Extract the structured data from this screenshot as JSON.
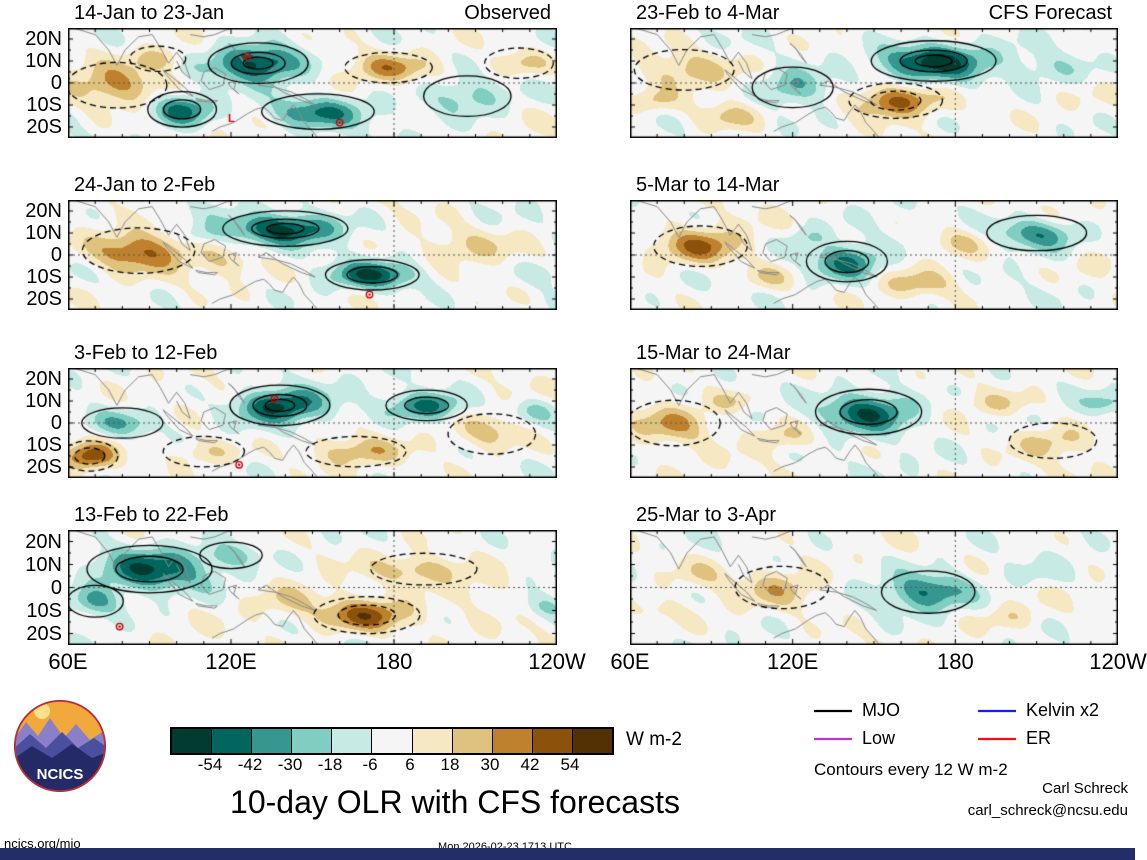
{
  "title": "10-day OLR with CFS forecasts",
  "footer": {
    "site": "ncics.org/mjo",
    "timestamp": "Mon 2026-02-23 1713 UTC"
  },
  "credits": {
    "name": "Carl Schreck",
    "email": "carl_schreck@ncsu.edu"
  },
  "logo": {
    "text": "NCICS"
  },
  "legend": {
    "note": "Contours every 12 W m-2",
    "items": [
      {
        "label": "MJO",
        "color": "#000000"
      },
      {
        "label": "Kelvin x2",
        "color": "#1a1aff"
      },
      {
        "label": "Low",
        "color": "#bb33dd"
      },
      {
        "label": "ER",
        "color": "#ee1111"
      }
    ]
  },
  "colorbar": {
    "units": "W m-2",
    "tick_labels": [
      "-54",
      "-42",
      "-30",
      "-18",
      "-6",
      "6",
      "18",
      "30",
      "42",
      "54"
    ],
    "colors": [
      "#003c30",
      "#01665e",
      "#35978f",
      "#80cdc1",
      "#c7eae5",
      "#f5f5f5",
      "#f6e8c3",
      "#dfc27d",
      "#bf812d",
      "#8c510a",
      "#543005"
    ]
  },
  "axes": {
    "x_tick_labels": [
      "60E",
      "120E",
      "180",
      "120W"
    ],
    "x_tick_lons": [
      60,
      120,
      180,
      240
    ],
    "y_tick_labels": [
      "20N",
      "10N",
      "0",
      "10S",
      "20S"
    ],
    "y_tick_lats": [
      20,
      10,
      0,
      -10,
      -20
    ],
    "lon_range": [
      60,
      240
    ],
    "lat_range": [
      -25,
      25
    ]
  },
  "chart_data": {
    "type": "heatmap",
    "units": "W m-2",
    "contour_interval": 12,
    "levels": [
      -54,
      -42,
      -30,
      -18,
      -6,
      6,
      18,
      30,
      42,
      54
    ],
    "description": "Eight tropical strip maps (60E-120W, 25S-25N) of 10-day mean OLR anomalies. Left column: observed periods; right column: CFS forecast periods. Teal shading = negative OLR anomaly (enhanced convection), brown = positive (suppressed). Black contours every 12 W m-2 show wave-filtered anomalies (solid negative, dashed positive). Blobs below are estimated anomaly centers (lon, lat, zonal/meridional radii in degrees, peak amplitude W m-2).",
    "panels": [
      {
        "title": "14-Jan to 23-Jan",
        "corner_label": "Observed",
        "col": 0,
        "row": 0,
        "texture_seed": 1,
        "blobs": [
          {
            "lon": 130,
            "lat": 9,
            "rx": 16,
            "ry": 8,
            "amp": -58
          },
          {
            "lon": 102,
            "lat": -12,
            "rx": 11,
            "ry": 7,
            "amp": -48
          },
          {
            "lon": 152,
            "lat": -13,
            "rx": 18,
            "ry": 7,
            "amp": -42
          },
          {
            "lon": 78,
            "lat": -1,
            "rx": 16,
            "ry": 9,
            "amp": 34
          },
          {
            "lon": 178,
            "lat": 7,
            "rx": 14,
            "ry": 6,
            "amp": 30
          },
          {
            "lon": 207,
            "lat": -6,
            "rx": 14,
            "ry": 8,
            "amp": -26
          },
          {
            "lon": 226,
            "lat": 9,
            "rx": 11,
            "ry": 6,
            "amp": 22
          },
          {
            "lon": 93,
            "lat": 11,
            "rx": 9,
            "ry": 5,
            "amp": 24
          }
        ],
        "markers": [
          {
            "lon": 126,
            "lat": 12,
            "type": "cyclone"
          },
          {
            "lon": 120,
            "lat": -16,
            "type": "low",
            "label": "L"
          },
          {
            "lon": 160,
            "lat": -18,
            "type": "cyclone"
          }
        ]
      },
      {
        "title": "24-Jan to 2-Feb",
        "corner_label": "",
        "col": 0,
        "row": 1,
        "texture_seed": 2,
        "blobs": [
          {
            "lon": 140,
            "lat": 12,
            "rx": 20,
            "ry": 7,
            "amp": -58
          },
          {
            "lon": 86,
            "lat": 2,
            "rx": 18,
            "ry": 9,
            "amp": 44
          },
          {
            "lon": 172,
            "lat": -9,
            "rx": 15,
            "ry": 6,
            "amp": -50
          },
          {
            "lon": 205,
            "lat": 4,
            "rx": 18,
            "ry": 8,
            "amp": 18
          },
          {
            "lon": 118,
            "lat": -4,
            "rx": 10,
            "ry": 6,
            "amp": 14
          },
          {
            "lon": 108,
            "lat": 9,
            "rx": 9,
            "ry": 5,
            "amp": -18
          },
          {
            "lon": 235,
            "lat": -8,
            "rx": 10,
            "ry": 6,
            "amp": -16
          }
        ],
        "markers": [
          {
            "lon": 171,
            "lat": -18,
            "type": "cyclone"
          }
        ]
      },
      {
        "title": "3-Feb to 12-Feb",
        "corner_label": "",
        "col": 0,
        "row": 2,
        "texture_seed": 3,
        "blobs": [
          {
            "lon": 138,
            "lat": 8,
            "rx": 16,
            "ry": 8,
            "amp": -58
          },
          {
            "lon": 192,
            "lat": 8,
            "rx": 13,
            "ry": 6,
            "amp": -46
          },
          {
            "lon": 80,
            "lat": 0,
            "rx": 13,
            "ry": 6,
            "amp": -26
          },
          {
            "lon": 68,
            "lat": -15,
            "rx": 9,
            "ry": 6,
            "amp": 48
          },
          {
            "lon": 110,
            "lat": -13,
            "rx": 13,
            "ry": 6,
            "amp": 22
          },
          {
            "lon": 166,
            "lat": -13,
            "rx": 16,
            "ry": 6,
            "amp": 24
          },
          {
            "lon": 216,
            "lat": -5,
            "rx": 14,
            "ry": 8,
            "amp": 24
          },
          {
            "lon": 231,
            "lat": 6,
            "rx": 9,
            "ry": 6,
            "amp": -20
          }
        ],
        "markers": [
          {
            "lon": 136,
            "lat": 11,
            "type": "cyclone"
          },
          {
            "lon": 123,
            "lat": -19,
            "type": "cyclone"
          }
        ]
      },
      {
        "title": "13-Feb to 22-Feb",
        "corner_label": "",
        "col": 0,
        "row": 3,
        "texture_seed": 4,
        "blobs": [
          {
            "lon": 90,
            "lat": 8,
            "rx": 20,
            "ry": 9,
            "amp": -50
          },
          {
            "lon": 70,
            "lat": -6,
            "rx": 9,
            "ry": 6,
            "amp": -30
          },
          {
            "lon": 170,
            "lat": -12,
            "rx": 17,
            "ry": 7,
            "amp": 48
          },
          {
            "lon": 191,
            "lat": 8,
            "rx": 17,
            "ry": 6,
            "amp": 26
          },
          {
            "lon": 140,
            "lat": -6,
            "rx": 14,
            "ry": 7,
            "amp": 16
          },
          {
            "lon": 214,
            "lat": 1,
            "rx": 12,
            "ry": 8,
            "amp": 14
          },
          {
            "lon": 236,
            "lat": -8,
            "rx": 8,
            "ry": 5,
            "amp": -18
          },
          {
            "lon": 120,
            "lat": 14,
            "rx": 10,
            "ry": 5,
            "amp": -22
          }
        ],
        "markers": [
          {
            "lon": 79,
            "lat": -17,
            "type": "cyclone"
          }
        ]
      },
      {
        "title": "23-Feb to 4-Mar",
        "corner_label": "CFS Forecast",
        "col": 1,
        "row": 0,
        "texture_seed": 5,
        "blobs": [
          {
            "lon": 172,
            "lat": 10,
            "rx": 20,
            "ry": 8,
            "amp": -60
          },
          {
            "lon": 158,
            "lat": -8,
            "rx": 15,
            "ry": 7,
            "amp": 50
          },
          {
            "lon": 120,
            "lat": -2,
            "rx": 13,
            "ry": 8,
            "amp": -34
          },
          {
            "lon": 80,
            "lat": 6,
            "rx": 16,
            "ry": 8,
            "amp": 26
          },
          {
            "lon": 214,
            "lat": 6,
            "rx": 16,
            "ry": 8,
            "amp": -18
          },
          {
            "lon": 96,
            "lat": -15,
            "rx": 11,
            "ry": 6,
            "amp": 20
          },
          {
            "lon": 68,
            "lat": -8,
            "rx": 8,
            "ry": 5,
            "amp": 18
          }
        ],
        "markers": []
      },
      {
        "title": "5-Mar to 14-Mar",
        "corner_label": "",
        "col": 1,
        "row": 1,
        "texture_seed": 6,
        "blobs": [
          {
            "lon": 140,
            "lat": -3,
            "rx": 13,
            "ry": 8,
            "amp": -46
          },
          {
            "lon": 86,
            "lat": 4,
            "rx": 15,
            "ry": 8,
            "amp": 40
          },
          {
            "lon": 210,
            "lat": 10,
            "rx": 16,
            "ry": 7,
            "amp": -40
          },
          {
            "lon": 181,
            "lat": 6,
            "rx": 11,
            "ry": 6,
            "amp": 20
          },
          {
            "lon": 166,
            "lat": -13,
            "rx": 13,
            "ry": 6,
            "amp": 20
          },
          {
            "lon": 111,
            "lat": -10,
            "rx": 11,
            "ry": 6,
            "amp": 18
          },
          {
            "lon": 125,
            "lat": 8,
            "rx": 8,
            "ry": 5,
            "amp": -18
          },
          {
            "lon": 232,
            "lat": -5,
            "rx": 10,
            "ry": 6,
            "amp": 16
          }
        ],
        "markers": []
      },
      {
        "title": "15-Mar to 24-Mar",
        "corner_label": "",
        "col": 1,
        "row": 2,
        "texture_seed": 7,
        "blobs": [
          {
            "lon": 148,
            "lat": 5,
            "rx": 17,
            "ry": 9,
            "amp": -56
          },
          {
            "lon": 76,
            "lat": 0,
            "rx": 15,
            "ry": 9,
            "amp": 30
          },
          {
            "lon": 116,
            "lat": -6,
            "rx": 11,
            "ry": 6,
            "amp": 20
          },
          {
            "lon": 196,
            "lat": 9,
            "rx": 14,
            "ry": 6,
            "amp": 18
          },
          {
            "lon": 216,
            "lat": -8,
            "rx": 14,
            "ry": 7,
            "amp": 22
          },
          {
            "lon": 235,
            "lat": 9,
            "rx": 8,
            "ry": 5,
            "amp": -20
          },
          {
            "lon": 97,
            "lat": 10,
            "rx": 9,
            "ry": 5,
            "amp": 18
          }
        ],
        "markers": []
      },
      {
        "title": "25-Mar to 3-Apr",
        "corner_label": "",
        "col": 1,
        "row": 3,
        "texture_seed": 8,
        "blobs": [
          {
            "lon": 170,
            "lat": -2,
            "rx": 15,
            "ry": 8,
            "amp": -42
          },
          {
            "lon": 116,
            "lat": 0,
            "rx": 15,
            "ry": 8,
            "amp": 22
          },
          {
            "lon": 86,
            "lat": 6,
            "rx": 11,
            "ry": 6,
            "amp": 12
          },
          {
            "lon": 210,
            "lat": 6,
            "rx": 14,
            "ry": 7,
            "amp": -12
          },
          {
            "lon": 200,
            "lat": -13,
            "rx": 11,
            "ry": 5,
            "amp": 14
          },
          {
            "lon": 70,
            "lat": -10,
            "rx": 9,
            "ry": 5,
            "amp": 10
          }
        ],
        "markers": []
      }
    ]
  }
}
